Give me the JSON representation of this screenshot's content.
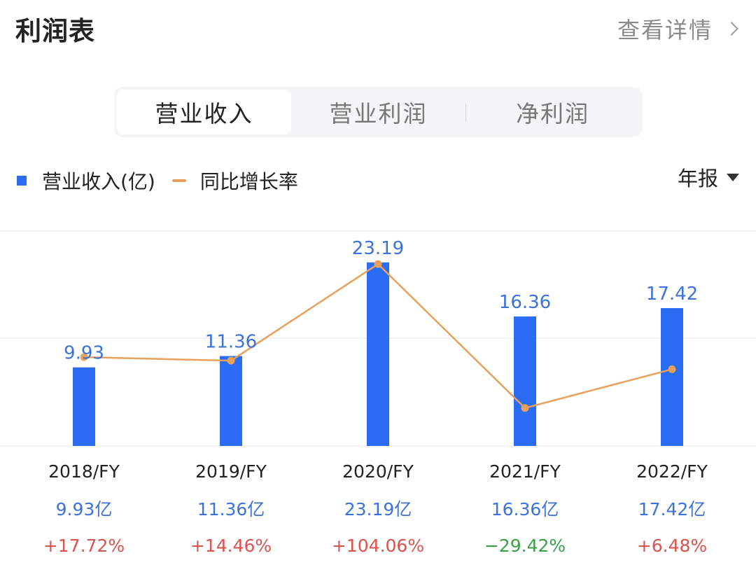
{
  "header": {
    "title": "利润表",
    "detail_label": "查看详情"
  },
  "tabs": [
    {
      "label": "营业收入",
      "active": true
    },
    {
      "label": "营业利润",
      "active": false
    },
    {
      "label": "净利润",
      "active": false
    }
  ],
  "legend": {
    "bar_label": "营业收入(亿)",
    "line_label": "同比增长率"
  },
  "period": {
    "label": "年报"
  },
  "colors": {
    "bar": "#2a6df4",
    "line": "#e8a05a",
    "value_text": "#3d73d9",
    "positive": "#d9534f",
    "negative": "#3aa04a",
    "grid": "#ededed"
  },
  "chart_data": {
    "type": "bar",
    "categories": [
      "2018/FY",
      "2019/FY",
      "2020/FY",
      "2021/FY",
      "2022/FY"
    ],
    "series": [
      {
        "name": "营业收入(亿)",
        "type": "bar",
        "values": [
          9.93,
          11.36,
          23.19,
          16.36,
          17.42
        ],
        "labels": [
          "9.93",
          "11.36",
          "23.19",
          "16.36",
          "17.42"
        ]
      },
      {
        "name": "同比增长率",
        "type": "line",
        "values": [
          17.72,
          14.46,
          104.06,
          -29.42,
          6.48
        ]
      }
    ],
    "value_labels": [
      "9.93亿",
      "11.36亿",
      "23.19亿",
      "16.36亿",
      "17.42亿"
    ],
    "growth_labels": [
      "+17.72%",
      "+14.46%",
      "+104.06%",
      "−29.42%",
      "+6.48%"
    ],
    "grid": true
  }
}
